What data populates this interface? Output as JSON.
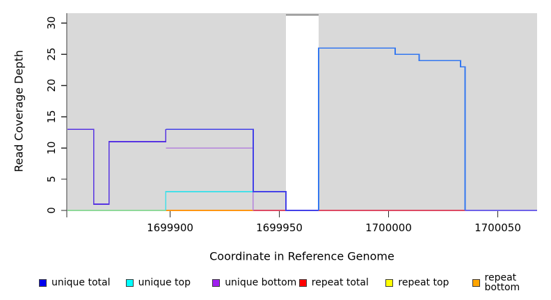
{
  "figure": {
    "xlabel": "Coordinate in Reference Genome",
    "ylabel": "Read Coverage Depth"
  },
  "chart_data": {
    "type": "line",
    "title": "",
    "xlabel": "Coordinate in Reference Genome",
    "ylabel": "Read Coverage Depth",
    "xlim": [
      1699853,
      1700068
    ],
    "ylim": [
      0,
      31.6
    ],
    "grid": false,
    "legend_position": "bottom",
    "x_ticks": [
      {
        "value": 1699900,
        "label": "1699900"
      },
      {
        "value": 1699950,
        "label": "1699950"
      },
      {
        "value": 1700000,
        "label": "1700000"
      },
      {
        "value": 1700050,
        "label": "1700050"
      }
    ],
    "y_ticks": [
      {
        "value": 0,
        "label": "0"
      },
      {
        "value": 5,
        "label": "5"
      },
      {
        "value": 10,
        "label": "10"
      },
      {
        "value": 15,
        "label": "15"
      },
      {
        "value": 20,
        "label": "20"
      },
      {
        "value": 25,
        "label": "25"
      },
      {
        "value": 30,
        "label": "30"
      }
    ],
    "background_region": {
      "x0": 1699853,
      "x1": 1700068,
      "y0": 0,
      "y1": 31.6,
      "color": "#d9d9d9"
    },
    "gap_region": {
      "x0": 1699953,
      "x1": 1699968,
      "top_value": 31.3,
      "color": "#ffffff",
      "cap_color": "#8a8a8a"
    },
    "unique_total_steps": [
      [
        1699853,
        13
      ],
      [
        1699865,
        1
      ],
      [
        1699872,
        11
      ],
      [
        1699898,
        13
      ],
      [
        1699938,
        3
      ],
      [
        1699953,
        0
      ],
      [
        1699968,
        26
      ],
      [
        1700003,
        25
      ],
      [
        1700014,
        24
      ],
      [
        1700033,
        23
      ],
      [
        1700035,
        0
      ],
      [
        1700068,
        0
      ]
    ],
    "polylines": [
      {
        "name": "zero-line-green",
        "series": "baseline-left",
        "color": "#8fd89a",
        "width": 1.6,
        "points": [
          [
            1699853,
            0
          ],
          [
            1699898,
            0
          ]
        ]
      },
      {
        "name": "zero-line-orange",
        "series": "repeat bottom",
        "color": "#ff9612",
        "width": 1.6,
        "points": [
          [
            1699898,
            0
          ],
          [
            1699938,
            0
          ]
        ]
      },
      {
        "name": "zero-line-red",
        "series": "repeat total",
        "color": "#dc4a64",
        "width": 1.6,
        "points": [
          [
            1699938,
            0
          ],
          [
            1700035,
            0
          ]
        ]
      },
      {
        "name": "unique-top-line",
        "series": "unique top",
        "color": "#45dfe8",
        "width": 1.6,
        "points": [
          [
            1699898,
            0
          ],
          [
            1699898,
            3
          ],
          [
            1699938,
            3
          ]
        ]
      },
      {
        "name": "unique-bottom-line",
        "series": "unique bottom",
        "color": "#b483dc",
        "width": 1.6,
        "points": [
          [
            1699898,
            10
          ],
          [
            1699938,
            10
          ],
          [
            1699938,
            0
          ]
        ]
      },
      {
        "name": "total-left-line",
        "series": "unique total + unique bottom",
        "color": "#5633e2",
        "width": 1.8,
        "points": [
          [
            1699853,
            13
          ],
          [
            1699865,
            13
          ],
          [
            1699865,
            1
          ],
          [
            1699872,
            1
          ],
          [
            1699872,
            11
          ],
          [
            1699898,
            11
          ],
          [
            1699898,
            13
          ]
        ]
      },
      {
        "name": "total-mid-line",
        "series": "unique total",
        "color": "#4340e8",
        "width": 1.8,
        "points": [
          [
            1699898,
            13
          ],
          [
            1699938,
            13
          ],
          [
            1699938,
            3
          ],
          [
            1699953,
            3
          ],
          [
            1699953,
            0
          ],
          [
            1699968,
            0
          ]
        ]
      },
      {
        "name": "total-right-line",
        "series": "unique total",
        "color": "#3377f0",
        "width": 1.8,
        "points": [
          [
            1699968,
            0
          ],
          [
            1699968,
            26
          ],
          [
            1700003,
            26
          ],
          [
            1700003,
            25
          ],
          [
            1700014,
            25
          ],
          [
            1700014,
            24
          ],
          [
            1700033,
            24
          ],
          [
            1700033,
            23
          ],
          [
            1700035,
            23
          ],
          [
            1700035,
            0
          ]
        ]
      },
      {
        "name": "zero-line-purple",
        "series": "unique bottom",
        "color": "#6e62e8",
        "width": 1.6,
        "points": [
          [
            1700035,
            0
          ],
          [
            1700068,
            0
          ]
        ]
      }
    ],
    "legend": [
      {
        "label": "unique total",
        "color": "#0000ee"
      },
      {
        "label": "unique top",
        "color": "#00ffff"
      },
      {
        "label": "unique bottom",
        "color": "#a020f0"
      },
      {
        "label": "repeat total",
        "color": "#ff0000"
      },
      {
        "label": "repeat top",
        "color": "#ffff00"
      },
      {
        "label": "repeat bottom",
        "color": "#ffa500"
      }
    ]
  }
}
